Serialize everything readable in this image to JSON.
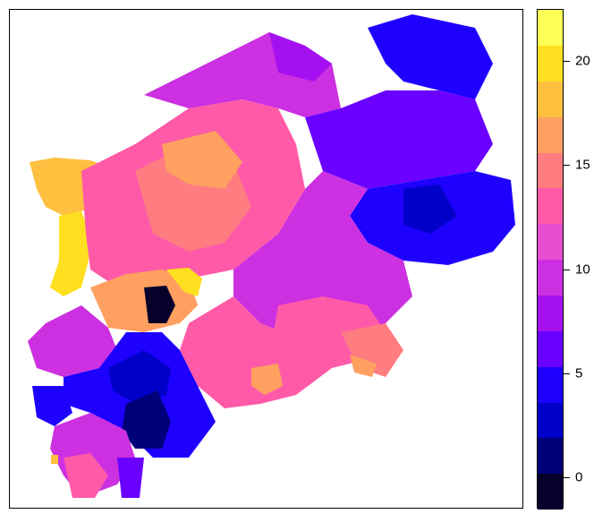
{
  "map": {
    "type": "choropleth",
    "region_count_visible": "many districts",
    "palette": [
      "#07002a",
      "#00007a",
      "#0000c8",
      "#1e00ff",
      "#6a00ff",
      "#a510f0",
      "#cc30e0",
      "#e84ed0",
      "#ff5aa8",
      "#ff7c80",
      "#ffa060",
      "#ffc040",
      "#ffe020",
      "#ffff55"
    ]
  },
  "legend": {
    "colors": [
      "#07002a",
      "#00007a",
      "#0000c8",
      "#1e00ff",
      "#6a00ff",
      "#a510f0",
      "#cc30e0",
      "#e84ed0",
      "#ff5aa8",
      "#ff7c80",
      "#ffa060",
      "#ffc040",
      "#ffe020",
      "#ffff55"
    ],
    "range": [
      -1.5,
      22.5
    ],
    "ticks": [
      {
        "value": 0,
        "label": "0"
      },
      {
        "value": 5,
        "label": "5"
      },
      {
        "value": 10,
        "label": "10"
      },
      {
        "value": 15,
        "label": "15"
      },
      {
        "value": 20,
        "label": "20"
      }
    ]
  }
}
